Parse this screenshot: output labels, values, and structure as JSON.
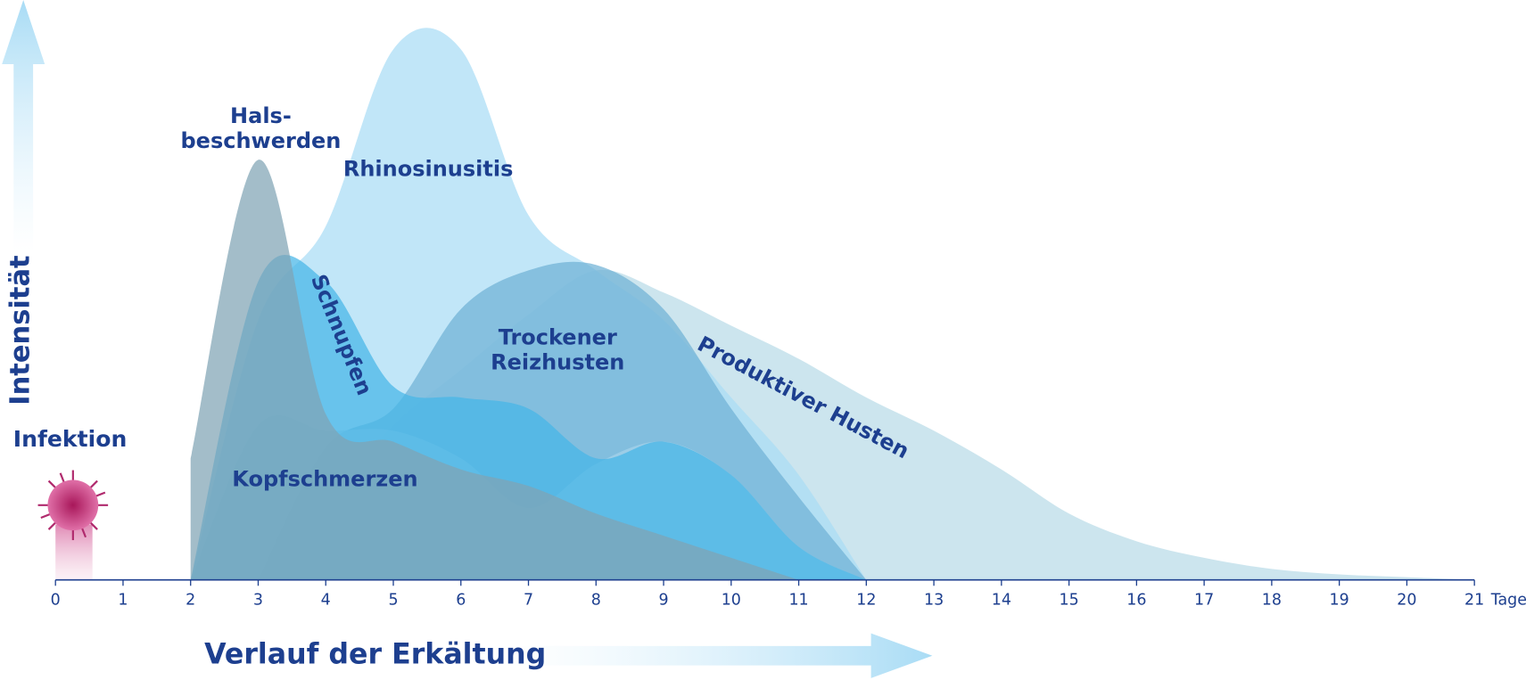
{
  "chart_data": {
    "type": "area",
    "x_label": "Verlauf der Erkältung",
    "y_label": "Intensität",
    "x_unit": "Tage",
    "annotation": "Infektion",
    "x": [
      0,
      1,
      2,
      3,
      4,
      5,
      6,
      7,
      8,
      9,
      10,
      11,
      12,
      13,
      14,
      15,
      16,
      17,
      18,
      19,
      20,
      21
    ],
    "xlim": [
      0,
      21
    ],
    "xticks": [
      0,
      1,
      2,
      3,
      4,
      5,
      6,
      7,
      8,
      9,
      10,
      11,
      12,
      13,
      14,
      15,
      16,
      17,
      18,
      19,
      20,
      21
    ],
    "ylim": [
      0,
      100
    ],
    "series": [
      {
        "name": "Produktiver Husten",
        "color": "#b9dbe8",
        "values": [
          null,
          null,
          null,
          0,
          14,
          28,
          38,
          48,
          56,
          52,
          46,
          40,
          33,
          27,
          20,
          12,
          7,
          4,
          2,
          1,
          0.5,
          0
        ]
      },
      {
        "name": "Rhinosinusitis",
        "color": "#a9dcf5",
        "values": [
          null,
          null,
          0,
          47,
          64,
          96,
          96,
          66,
          56,
          47,
          33,
          19,
          0,
          null,
          null,
          null,
          null,
          null,
          null,
          null,
          null,
          null
        ]
      },
      {
        "name": "Trockener\nReizhusten",
        "color": "#6fb1d6",
        "values": [
          null,
          null,
          null,
          0,
          24,
          31,
          49,
          56,
          57,
          49,
          31,
          15,
          0,
          null,
          null,
          null,
          null,
          null,
          null,
          null,
          null,
          null
        ]
      },
      {
        "name": "Kopfschmerzen",
        "color": "#a6d3ea",
        "values": [
          null,
          null,
          0,
          28,
          27,
          27,
          22,
          13,
          21,
          25,
          19,
          6,
          0,
          null,
          null,
          null,
          null,
          null,
          null,
          null,
          null,
          null
        ]
      },
      {
        "name": "Schnupfen",
        "color": "#45b6e8",
        "values": [
          null,
          null,
          0,
          54,
          54,
          35,
          33,
          31,
          22,
          25,
          19,
          6,
          0,
          null,
          null,
          null,
          null,
          null,
          null,
          null,
          null,
          null
        ]
      },
      {
        "name": "Hals-\nbeschwerden",
        "color": "#7fa3b4",
        "values": [
          null,
          null,
          22,
          76,
          30,
          25,
          20,
          17,
          12,
          8,
          4,
          0,
          null,
          null,
          null,
          null,
          null,
          null,
          null,
          null,
          null,
          null
        ]
      }
    ]
  }
}
